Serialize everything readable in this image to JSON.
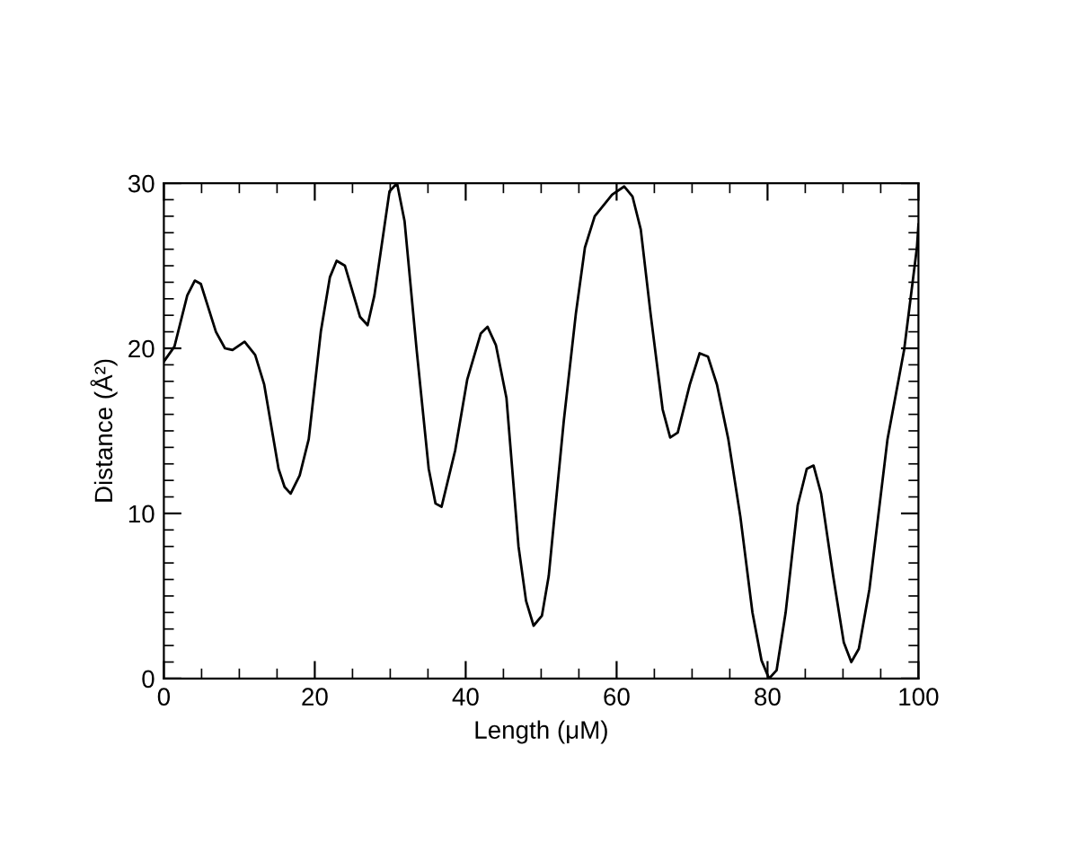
{
  "chart_data": {
    "type": "line",
    "xlabel": "Length (μM)",
    "ylabel": "Distance (Å²)",
    "xlim": [
      0,
      100
    ],
    "ylim": [
      0,
      30
    ],
    "xticks": [
      0,
      20,
      40,
      60,
      80,
      100
    ],
    "yticks": [
      0,
      10,
      20,
      30
    ],
    "grid": false,
    "marker": "none",
    "line_style": "solid",
    "series": [
      {
        "color": "#000000",
        "x": [
          0,
          1.4,
          3.1,
          4.1,
          4.9,
          6.9,
          8.1,
          9.1,
          10.7,
          12.1,
          13.3,
          15.2,
          16.0,
          16.8,
          18.0,
          19.2,
          20.8,
          22.0,
          22.9,
          24.0,
          26.0,
          27.0,
          27.9,
          29.9,
          30.9,
          31.9,
          33.5,
          35.1,
          36.0,
          36.8,
          38.6,
          40.2,
          42.0,
          42.9,
          44.0,
          45.4,
          47.0,
          48.0,
          49.0,
          50.1,
          51.0,
          53.0,
          54.6,
          55.8,
          57.1,
          59.4,
          61.0,
          62.1,
          63.2,
          64.5,
          66.1,
          67.1,
          68.1,
          69.7,
          71.0,
          72.1,
          73.3,
          74.8,
          76.4,
          78.0,
          79.2,
          80.2,
          81.2,
          82.4,
          84.0,
          85.2,
          86.1,
          87.1,
          88.7,
          90.1,
          91.1,
          92.1,
          93.5,
          95.9,
          98.1,
          99.8,
          100
        ],
        "values": [
          19.2,
          20.1,
          23.2,
          24.1,
          23.9,
          21.0,
          20.0,
          19.9,
          20.4,
          19.6,
          17.8,
          12.7,
          11.6,
          11.2,
          12.3,
          14.5,
          21.0,
          24.3,
          25.3,
          25.0,
          21.9,
          21.4,
          23.2,
          29.5,
          30.0,
          27.7,
          19.9,
          12.7,
          10.6,
          10.4,
          13.8,
          18.1,
          20.9,
          21.3,
          20.2,
          17.0,
          8.0,
          4.7,
          3.2,
          3.8,
          6.2,
          15.6,
          22.1,
          26.1,
          28.0,
          29.3,
          29.8,
          29.2,
          27.2,
          22.1,
          16.3,
          14.6,
          14.9,
          17.8,
          19.7,
          19.5,
          17.8,
          14.5,
          9.8,
          4.0,
          1.1,
          0.0,
          0.5,
          4.0,
          10.5,
          12.7,
          12.9,
          11.2,
          6.2,
          2.2,
          1.0,
          1.8,
          5.4,
          14.5,
          19.9,
          26.1,
          27.5
        ]
      }
    ]
  }
}
